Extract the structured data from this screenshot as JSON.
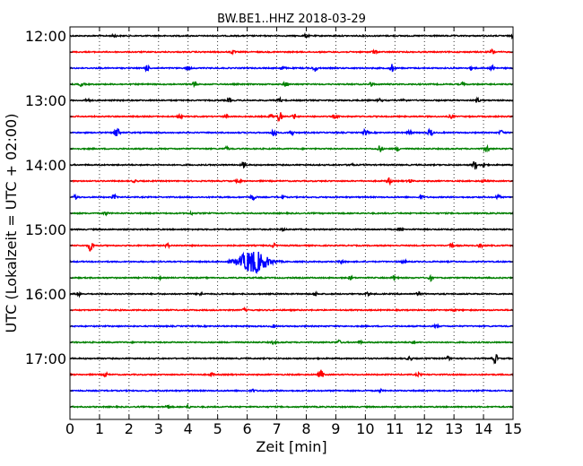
{
  "chart_data": {
    "type": "line",
    "subtype": "helicorder",
    "title": "BW.BE1..HHZ 2018-03-29",
    "xlabel": "Zeit  [min]",
    "ylabel": "UTC (Lokalzeit = UTC + 02:00)",
    "xlim": [
      0,
      15
    ],
    "x_ticks": [
      "0",
      "1",
      "2",
      "3",
      "4",
      "5",
      "6",
      "7",
      "8",
      "9",
      "10",
      "11",
      "12",
      "13",
      "14",
      "15"
    ],
    "y_ticks": [
      "12:00",
      "13:00",
      "14:00",
      "15:00",
      "16:00",
      "17:00"
    ],
    "grid": "vertical dotted lines at each minute",
    "colors": [
      "#000000",
      "#ff0000",
      "#0000ff",
      "#008000"
    ],
    "traces": [
      {
        "start": "12:00",
        "events": [
          {
            "min": 1.5,
            "amp": 0.2
          },
          {
            "min": 8.0,
            "amp": 0.25
          },
          {
            "min": 15.0,
            "amp": 0.3
          }
        ]
      },
      {
        "start": "12:15",
        "events": [
          {
            "min": 5.5,
            "amp": 0.25
          },
          {
            "min": 10.3,
            "amp": 0.3
          },
          {
            "min": 14.3,
            "amp": 0.4
          }
        ]
      },
      {
        "start": "12:30",
        "events": [
          {
            "min": 2.6,
            "amp": 0.5
          },
          {
            "min": 4.0,
            "amp": 0.3
          },
          {
            "min": 7.2,
            "amp": 0.3
          },
          {
            "min": 8.3,
            "amp": 0.5
          },
          {
            "min": 10.9,
            "amp": 0.6
          },
          {
            "min": 13.6,
            "amp": 0.3
          },
          {
            "min": 14.3,
            "amp": 0.4
          }
        ]
      },
      {
        "start": "12:45",
        "events": [
          {
            "min": 0.4,
            "amp": 0.35
          },
          {
            "min": 4.2,
            "amp": 0.45
          },
          {
            "min": 7.3,
            "amp": 0.4
          },
          {
            "min": 10.2,
            "amp": 0.35
          },
          {
            "min": 13.3,
            "amp": 0.25
          }
        ]
      },
      {
        "start": "13:00",
        "events": [
          {
            "min": 0.6,
            "amp": 0.3
          },
          {
            "min": 5.4,
            "amp": 0.3
          },
          {
            "min": 7.1,
            "amp": 0.3
          },
          {
            "min": 10.5,
            "amp": 0.25
          },
          {
            "min": 11.3,
            "amp": 0.3
          },
          {
            "min": 13.8,
            "amp": 0.3
          }
        ]
      },
      {
        "start": "13:15",
        "events": [
          {
            "min": 3.7,
            "amp": 0.3
          },
          {
            "min": 5.3,
            "amp": 0.25
          },
          {
            "min": 6.8,
            "amp": 0.4
          },
          {
            "min": 7.1,
            "amp": 0.9
          },
          {
            "min": 7.6,
            "amp": 0.35
          },
          {
            "min": 9.0,
            "amp": 0.25
          },
          {
            "min": 12.9,
            "amp": 0.25
          }
        ]
      },
      {
        "start": "13:30",
        "events": [
          {
            "min": 1.6,
            "amp": 1.1
          },
          {
            "min": 6.9,
            "amp": 0.8
          },
          {
            "min": 7.5,
            "amp": 0.4
          },
          {
            "min": 10.0,
            "amp": 0.5
          },
          {
            "min": 11.5,
            "amp": 0.35
          },
          {
            "min": 12.2,
            "amp": 0.7
          },
          {
            "min": 14.6,
            "amp": 0.35
          }
        ]
      },
      {
        "start": "13:45",
        "events": [
          {
            "min": 5.3,
            "amp": 0.25
          },
          {
            "min": 10.5,
            "amp": 0.6
          },
          {
            "min": 11.1,
            "amp": 0.3
          },
          {
            "min": 14.1,
            "amp": 0.6
          }
        ]
      },
      {
        "start": "14:00",
        "events": [
          {
            "min": 5.9,
            "amp": 0.5
          },
          {
            "min": 9.5,
            "amp": 0.3
          },
          {
            "min": 13.7,
            "amp": 0.7
          },
          {
            "min": 14.0,
            "amp": 0.4
          }
        ]
      },
      {
        "start": "14:15",
        "events": [
          {
            "min": 2.2,
            "amp": 0.2
          },
          {
            "min": 5.7,
            "amp": 0.25
          },
          {
            "min": 10.8,
            "amp": 0.5
          },
          {
            "min": 11.5,
            "amp": 0.3
          },
          {
            "min": 14.0,
            "amp": 0.25
          }
        ]
      },
      {
        "start": "14:30",
        "events": [
          {
            "min": 0.2,
            "amp": 0.4
          },
          {
            "min": 1.5,
            "amp": 0.3
          },
          {
            "min": 6.2,
            "amp": 0.5
          },
          {
            "min": 7.2,
            "amp": 0.3
          },
          {
            "min": 11.9,
            "amp": 0.3
          },
          {
            "min": 14.5,
            "amp": 0.4
          }
        ]
      },
      {
        "start": "14:45",
        "events": [
          {
            "min": 1.2,
            "amp": 0.25
          },
          {
            "min": 4.1,
            "amp": 0.2
          }
        ]
      },
      {
        "start": "15:00",
        "events": [
          {
            "min": 7.2,
            "amp": 0.2
          },
          {
            "min": 11.2,
            "amp": 0.25
          }
        ]
      },
      {
        "start": "15:15",
        "events": [
          {
            "min": 0.7,
            "amp": 1.0
          },
          {
            "min": 3.3,
            "amp": 0.3
          },
          {
            "min": 6.9,
            "amp": 0.3
          },
          {
            "min": 12.9,
            "amp": 0.4
          },
          {
            "min": 13.9,
            "amp": 0.3
          }
        ]
      },
      {
        "start": "15:30",
        "events": [
          {
            "min": 6.2,
            "amp": 1.8
          },
          {
            "min": 9.2,
            "amp": 0.3
          },
          {
            "min": 11.3,
            "amp": 0.3
          }
        ]
      },
      {
        "start": "15:45",
        "events": [
          {
            "min": 3.0,
            "amp": 0.2
          },
          {
            "min": 9.5,
            "amp": 0.3
          },
          {
            "min": 11.0,
            "amp": 0.5
          },
          {
            "min": 12.2,
            "amp": 0.45
          }
        ]
      },
      {
        "start": "16:00",
        "events": [
          {
            "min": 0.3,
            "amp": 0.3
          },
          {
            "min": 4.4,
            "amp": 0.3
          },
          {
            "min": 8.3,
            "amp": 0.3
          },
          {
            "min": 10.1,
            "amp": 0.25
          },
          {
            "min": 11.8,
            "amp": 0.25
          }
        ]
      },
      {
        "start": "16:15",
        "events": [
          {
            "min": 5.9,
            "amp": 0.2
          },
          {
            "min": 13.0,
            "amp": 0.2
          }
        ]
      },
      {
        "start": "16:30",
        "events": [
          {
            "min": 6.9,
            "amp": 0.2
          },
          {
            "min": 12.4,
            "amp": 0.2
          }
        ]
      },
      {
        "start": "16:45",
        "events": [
          {
            "min": 6.9,
            "amp": 0.25
          },
          {
            "min": 9.1,
            "amp": 0.3
          },
          {
            "min": 9.8,
            "amp": 0.25
          },
          {
            "min": 11.6,
            "amp": 0.25
          }
        ]
      },
      {
        "start": "17:00",
        "events": [
          {
            "min": 11.5,
            "amp": 0.35
          },
          {
            "min": 12.8,
            "amp": 0.3
          },
          {
            "min": 14.4,
            "amp": 0.8
          }
        ]
      },
      {
        "start": "17:15",
        "events": [
          {
            "min": 1.2,
            "amp": 0.3
          },
          {
            "min": 4.8,
            "amp": 0.25
          },
          {
            "min": 8.5,
            "amp": 0.8
          },
          {
            "min": 11.8,
            "amp": 0.25
          }
        ]
      },
      {
        "start": "17:30",
        "events": [
          {
            "min": 6.2,
            "amp": 0.2
          },
          {
            "min": 10.5,
            "amp": 0.2
          }
        ]
      },
      {
        "start": "17:45",
        "events": [
          {
            "min": 3.3,
            "amp": 0.3
          },
          {
            "min": 4.0,
            "amp": 0.2
          }
        ]
      }
    ]
  }
}
